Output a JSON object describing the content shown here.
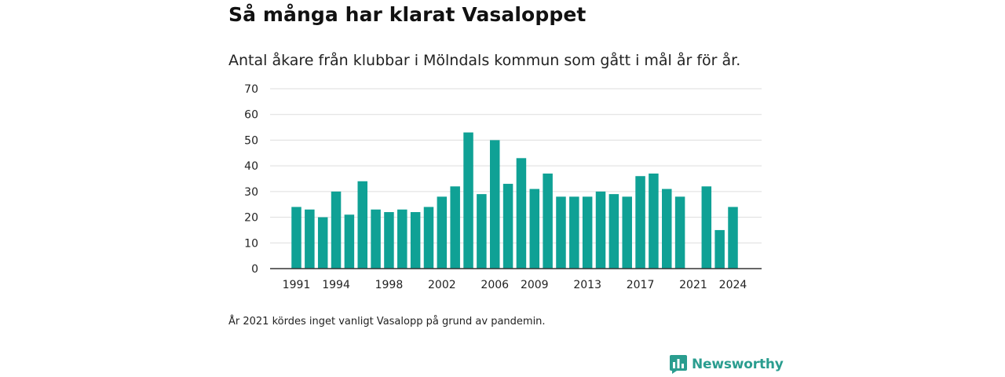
{
  "title": "Så många har klarat Vasaloppet",
  "subtitle": "Antal åkare från klubbar i Mölndals kommun som gått i mål år för år.",
  "note": "År 2021 kördes inget vanligt Vasalopp på grund av pandemin.",
  "brand": {
    "name": "Newsworthy",
    "icon": "newsworthy-logo-icon",
    "color": "#2a9d8f"
  },
  "chart_data": {
    "type": "bar",
    "title": "Så många har klarat Vasaloppet",
    "xlabel": "",
    "ylabel": "",
    "ylim": [
      0,
      70
    ],
    "y_ticks": [
      0,
      10,
      20,
      30,
      40,
      50,
      60,
      70
    ],
    "x_tick_labels": [
      "1991",
      "1994",
      "1998",
      "2002",
      "2006",
      "2009",
      "2013",
      "2017",
      "2021",
      "2024"
    ],
    "grid": true,
    "bar_color": "#0fa195",
    "categories": [
      1991,
      1992,
      1993,
      1994,
      1995,
      1996,
      1997,
      1998,
      1999,
      2000,
      2001,
      2002,
      2003,
      2004,
      2005,
      2006,
      2007,
      2008,
      2009,
      2010,
      2011,
      2012,
      2013,
      2014,
      2015,
      2016,
      2017,
      2018,
      2019,
      2020,
      2021,
      2022,
      2023,
      2024
    ],
    "values": [
      24,
      23,
      20,
      30,
      21,
      34,
      23,
      22,
      23,
      22,
      24,
      28,
      32,
      53,
      29,
      50,
      33,
      43,
      31,
      37,
      28,
      28,
      28,
      30,
      29,
      28,
      36,
      37,
      31,
      28,
      0,
      32,
      15,
      24
    ]
  }
}
